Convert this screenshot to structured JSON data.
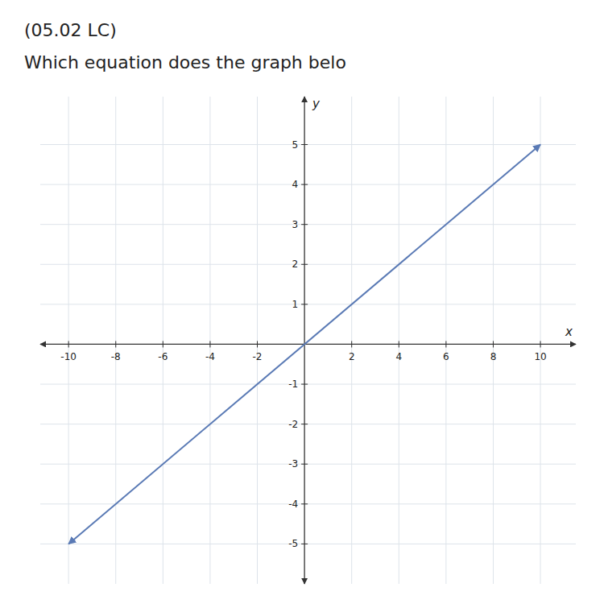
{
  "chart_data": {
    "type": "line",
    "title": "(05.02 LC)",
    "subtitle": "Which equation does the graph belo",
    "x_label": "x",
    "y_label": "y",
    "x": [
      -10,
      10
    ],
    "values": [
      -5,
      5
    ],
    "color": "#5a7ab5",
    "xlim": [
      -11.2,
      11.5
    ],
    "ylim": [
      -6,
      6.2
    ],
    "xticks": [
      -10,
      -8,
      -6,
      -4,
      -2,
      2,
      4,
      6,
      8,
      10
    ],
    "yticks": [
      -5,
      -4,
      -3,
      -2,
      -1,
      1,
      2,
      3,
      4,
      5
    ],
    "grid": true
  }
}
